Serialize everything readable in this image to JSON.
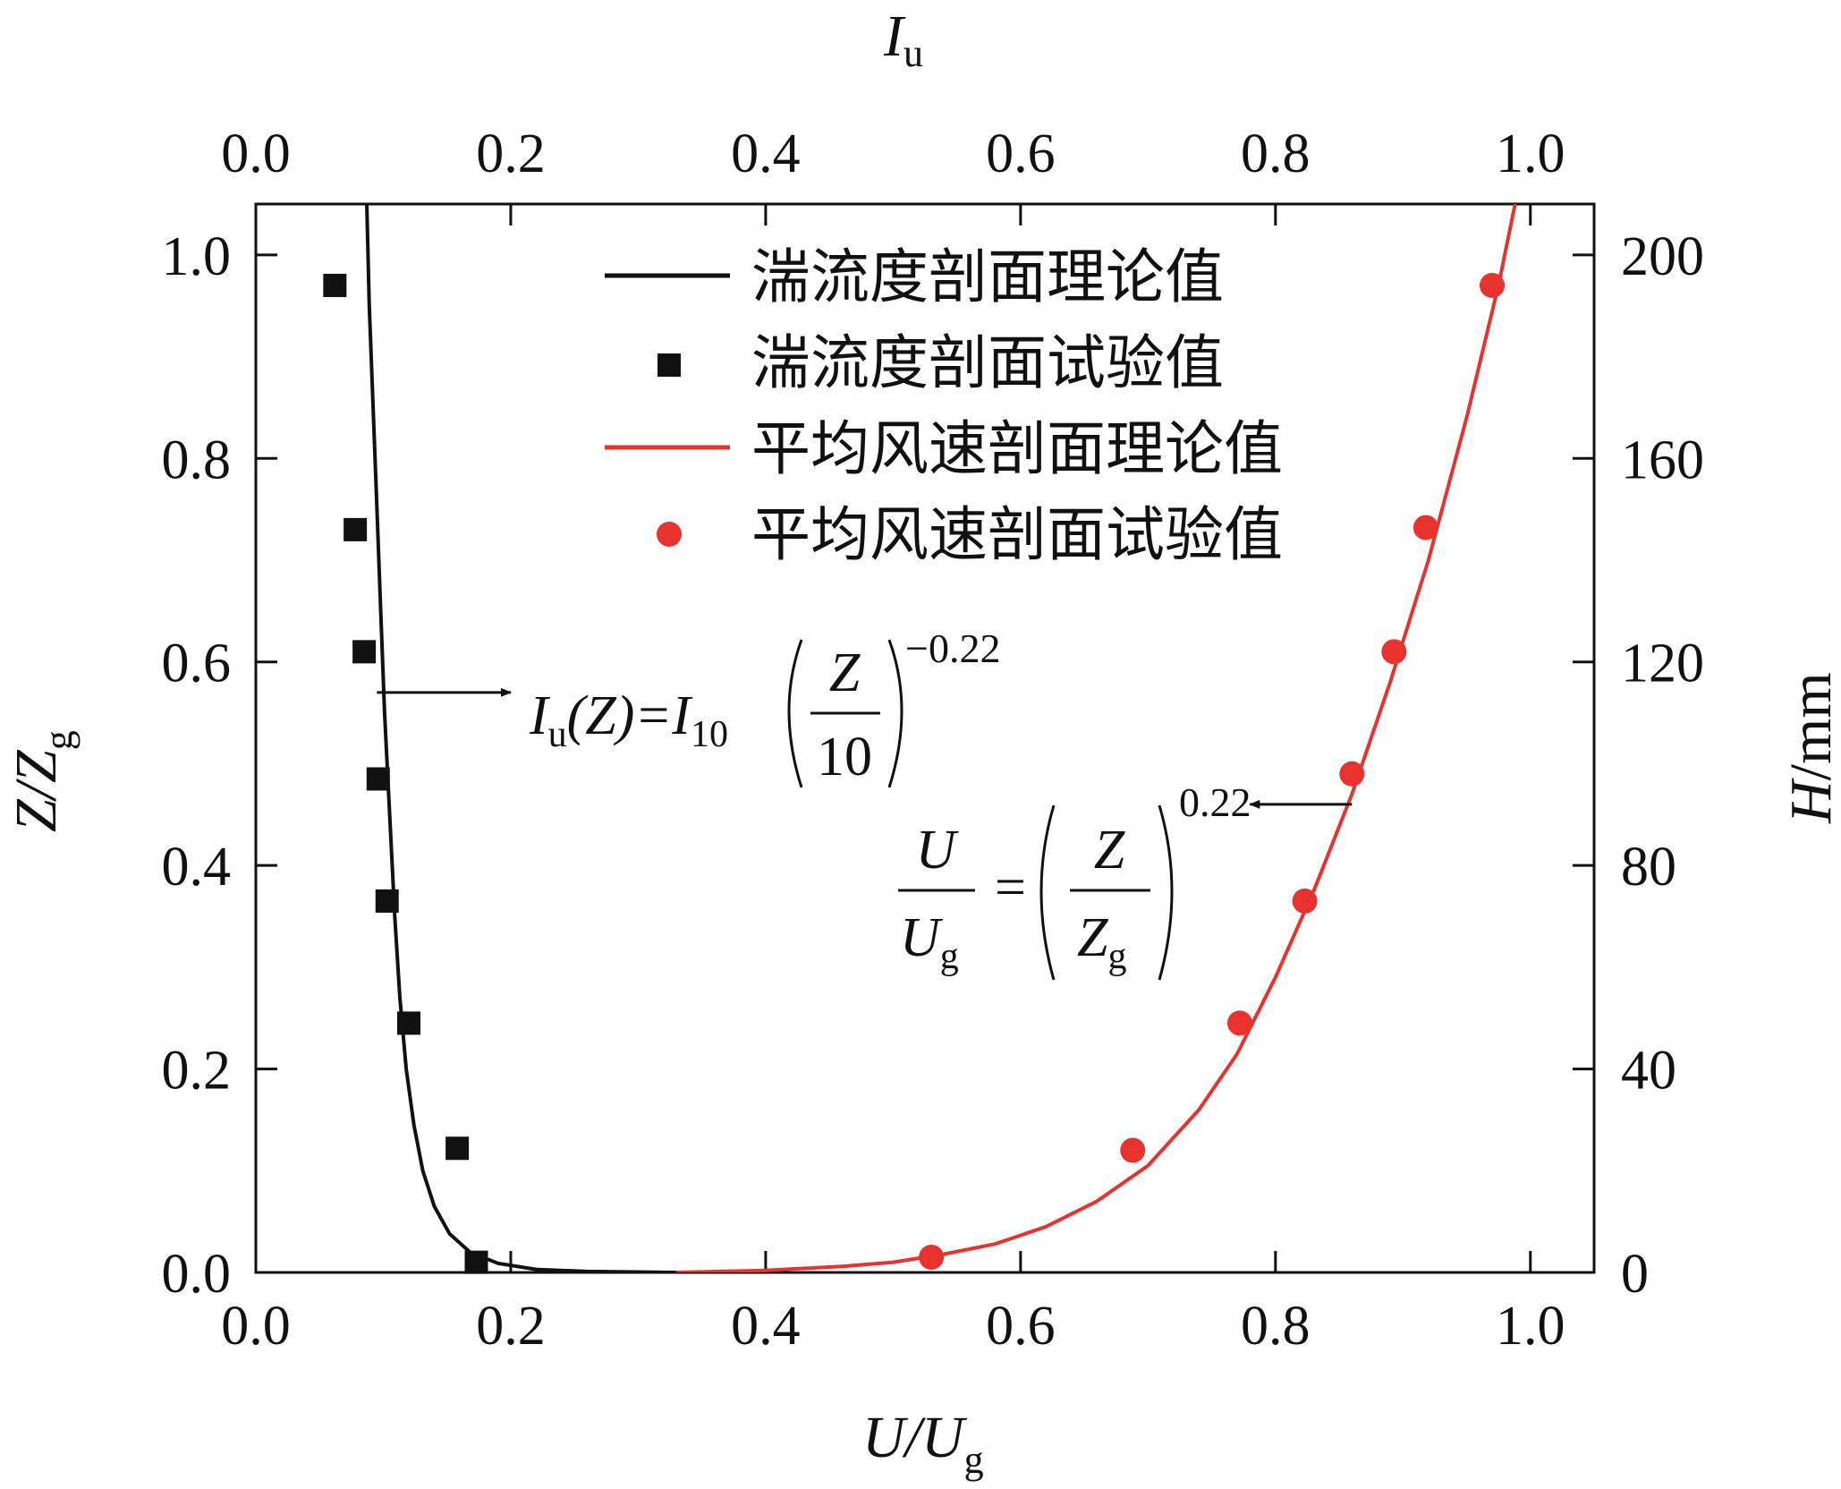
{
  "chart_data": {
    "type": "scatter",
    "axes": {
      "bottom": {
        "label_main": "U/U",
        "label_sub": "g",
        "range": [
          0,
          1.05
        ],
        "ticks": [
          "0.0",
          "0.2",
          "0.4",
          "0.6",
          "0.8",
          "1.0"
        ]
      },
      "top": {
        "label_main": "I",
        "label_sub": "u",
        "range": [
          0,
          1.05
        ],
        "ticks": [
          "0.0",
          "0.2",
          "0.4",
          "0.6",
          "0.8",
          "1.0"
        ]
      },
      "left": {
        "label_main": "Z/Z",
        "label_sub": "g",
        "range": [
          0,
          1.05
        ],
        "ticks": [
          "0.0",
          "0.2",
          "0.4",
          "0.6",
          "0.8",
          "1.0"
        ]
      },
      "right": {
        "label_main": "H",
        "label_suffix": "/mm",
        "range": [
          0,
          210
        ],
        "ticks": [
          "0",
          "40",
          "80",
          "120",
          "160",
          "200"
        ]
      }
    },
    "legend": {
      "placement": "top-center",
      "entries": [
        {
          "label": "湍流度剖面理论值",
          "marker": "line",
          "color": "#111111"
        },
        {
          "label": "湍流度剖面试验值",
          "marker": "square",
          "color": "#111111"
        },
        {
          "label": "平均风速剖面理论值",
          "marker": "line",
          "color": "#e8322d"
        },
        {
          "label": "平均风速剖面试验值",
          "marker": "circle",
          "color": "#e8322d"
        }
      ]
    },
    "series": [
      {
        "name": "湍流度剖面试验值",
        "kind": "scatter",
        "marker": "square",
        "color": "#111111",
        "points": [
          {
            "x": 0.062,
            "y": 0.97
          },
          {
            "x": 0.078,
            "y": 0.73
          },
          {
            "x": 0.085,
            "y": 0.61
          },
          {
            "x": 0.096,
            "y": 0.485
          },
          {
            "x": 0.103,
            "y": 0.365
          },
          {
            "x": 0.12,
            "y": 0.245
          },
          {
            "x": 0.158,
            "y": 0.122
          },
          {
            "x": 0.173,
            "y": 0.01
          }
        ]
      },
      {
        "name": "平均风速剖面试验值",
        "kind": "scatter",
        "marker": "circle",
        "color": "#e8322d",
        "points": [
          {
            "x": 0.53,
            "y": 0.015
          },
          {
            "x": 0.688,
            "y": 0.12
          },
          {
            "x": 0.772,
            "y": 0.245
          },
          {
            "x": 0.823,
            "y": 0.365
          },
          {
            "x": 0.86,
            "y": 0.49
          },
          {
            "x": 0.893,
            "y": 0.61
          },
          {
            "x": 0.918,
            "y": 0.732
          },
          {
            "x": 0.97,
            "y": 0.97
          }
        ]
      },
      {
        "name": "湍流度剖面理论值",
        "kind": "line",
        "color": "#111111",
        "points": [
          {
            "x": 0.087,
            "y": 1.05
          },
          {
            "x": 0.089,
            "y": 0.95
          },
          {
            "x": 0.092,
            "y": 0.85
          },
          {
            "x": 0.095,
            "y": 0.75
          },
          {
            "x": 0.098,
            "y": 0.65
          },
          {
            "x": 0.101,
            "y": 0.55
          },
          {
            "x": 0.105,
            "y": 0.45
          },
          {
            "x": 0.109,
            "y": 0.35
          },
          {
            "x": 0.113,
            "y": 0.27
          },
          {
            "x": 0.118,
            "y": 0.2
          },
          {
            "x": 0.124,
            "y": 0.145
          },
          {
            "x": 0.131,
            "y": 0.1
          },
          {
            "x": 0.14,
            "y": 0.065
          },
          {
            "x": 0.152,
            "y": 0.038
          },
          {
            "x": 0.168,
            "y": 0.02
          },
          {
            "x": 0.19,
            "y": 0.009
          },
          {
            "x": 0.22,
            "y": 0.003
          },
          {
            "x": 0.26,
            "y": 0.001
          },
          {
            "x": 0.33,
            "y": 0.0
          }
        ]
      },
      {
        "name": "平均风速剖面理论值",
        "kind": "line",
        "color": "#e8322d",
        "points": [
          {
            "x": 0.33,
            "y": 0.0
          },
          {
            "x": 0.4,
            "y": 0.002
          },
          {
            "x": 0.46,
            "y": 0.006
          },
          {
            "x": 0.5,
            "y": 0.01
          },
          {
            "x": 0.54,
            "y": 0.018
          },
          {
            "x": 0.58,
            "y": 0.028
          },
          {
            "x": 0.62,
            "y": 0.045
          },
          {
            "x": 0.66,
            "y": 0.07
          },
          {
            "x": 0.7,
            "y": 0.105
          },
          {
            "x": 0.74,
            "y": 0.16
          },
          {
            "x": 0.77,
            "y": 0.215
          },
          {
            "x": 0.8,
            "y": 0.29
          },
          {
            "x": 0.83,
            "y": 0.375
          },
          {
            "x": 0.86,
            "y": 0.47
          },
          {
            "x": 0.89,
            "y": 0.58
          },
          {
            "x": 0.92,
            "y": 0.7
          },
          {
            "x": 0.95,
            "y": 0.84
          },
          {
            "x": 0.975,
            "y": 0.97
          },
          {
            "x": 0.988,
            "y": 1.05
          }
        ]
      }
    ],
    "annotations": [
      {
        "id": "turbulence-equation",
        "arrow_from": [
          0.095,
          0.57
        ],
        "arrow_to": [
          0.2,
          0.57
        ]
      },
      {
        "id": "wind-equation",
        "arrow_from": [
          0.86,
          0.46
        ],
        "arrow_to": [
          0.78,
          0.46
        ]
      }
    ]
  },
  "equations": {
    "turbulence": {
      "lhs_I": "I",
      "lhs_sub": "u",
      "lhs_rest": "(Z)=",
      "rhs_I": "I",
      "rhs_sub": "10",
      "frac_num": "Z",
      "frac_den": "10",
      "exponent": "−0.22"
    },
    "wind": {
      "num": "U",
      "den_main": "U",
      "den_sub": "g",
      "equals": "=",
      "frac_num": "Z",
      "frac_den_main": "Z",
      "frac_den_sub": "g",
      "exponent": "0.22"
    }
  }
}
